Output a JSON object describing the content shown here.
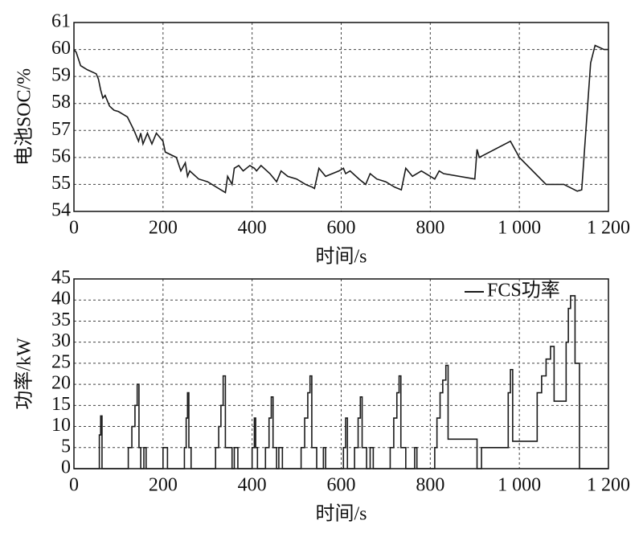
{
  "chart_data": [
    {
      "type": "line",
      "xlabel": "时间/s",
      "ylabel": "电池SOC/%",
      "color": "#1a1a1a",
      "grid": true,
      "x": [
        0,
        5,
        15,
        30,
        50,
        55,
        60,
        65,
        70,
        80,
        90,
        100,
        120,
        135,
        145,
        150,
        155,
        165,
        175,
        185,
        200,
        205,
        230,
        240,
        250,
        255,
        260,
        280,
        300,
        330,
        340,
        345,
        355,
        360,
        370,
        380,
        395,
        405,
        410,
        420,
        440,
        455,
        465,
        480,
        500,
        520,
        535,
        540,
        550,
        565,
        580,
        595,
        605,
        610,
        620,
        640,
        655,
        665,
        680,
        700,
        720,
        735,
        745,
        760,
        780,
        800,
        810,
        820,
        830,
        900,
        905,
        910,
        980,
        1000,
        1060,
        1100,
        1130,
        1140,
        1160,
        1170,
        1190,
        1200
      ],
      "values": [
        60.0,
        59.9,
        59.4,
        59.25,
        59.1,
        58.9,
        58.5,
        58.2,
        58.3,
        57.9,
        57.75,
        57.7,
        57.5,
        57.0,
        56.6,
        56.9,
        56.5,
        56.9,
        56.5,
        56.9,
        56.6,
        56.2,
        56.0,
        55.5,
        55.8,
        55.3,
        55.5,
        55.2,
        55.1,
        54.8,
        54.7,
        55.3,
        55.0,
        55.6,
        55.7,
        55.5,
        55.7,
        55.6,
        55.5,
        55.7,
        55.4,
        55.1,
        55.5,
        55.3,
        55.2,
        55.0,
        54.9,
        54.85,
        55.6,
        55.3,
        55.4,
        55.5,
        55.6,
        55.4,
        55.5,
        55.2,
        55.0,
        55.4,
        55.2,
        55.1,
        54.9,
        54.8,
        55.6,
        55.3,
        55.5,
        55.3,
        55.2,
        55.5,
        55.4,
        55.2,
        56.3,
        56.0,
        56.6,
        56.0,
        55.0,
        55.0,
        54.75,
        54.8,
        59.5,
        60.15,
        60.0,
        60.0
      ],
      "xlim": [
        0,
        1200
      ],
      "xticks": [
        0,
        200,
        400,
        600,
        800,
        {
          "value": 1000,
          "label": "1 000"
        },
        {
          "value": 1200,
          "label": "1 200"
        }
      ],
      "ylim": [
        54,
        61
      ],
      "yticks": [
        54,
        55,
        56,
        57,
        58,
        59,
        60,
        61
      ]
    },
    {
      "type": "line",
      "xlabel": "时间/s",
      "ylabel": "功率/kW",
      "grid": true,
      "legend": "upper right",
      "x": [
        0,
        57,
        57,
        60,
        60,
        63,
        63,
        122,
        122,
        130,
        130,
        137,
        137,
        142,
        142,
        146,
        146,
        150,
        150,
        157,
        157,
        162,
        162,
        200,
        200,
        210,
        210,
        248,
        248,
        252,
        252,
        255,
        255,
        258,
        258,
        263,
        263,
        318,
        318,
        325,
        325,
        330,
        330,
        335,
        335,
        340,
        340,
        355,
        355,
        360,
        360,
        368,
        368,
        400,
        400,
        405,
        405,
        408,
        408,
        412,
        412,
        430,
        430,
        438,
        438,
        443,
        443,
        447,
        447,
        455,
        455,
        460,
        460,
        468,
        468,
        510,
        510,
        518,
        518,
        525,
        525,
        530,
        530,
        534,
        534,
        545,
        545,
        560,
        560,
        565,
        565,
        605,
        605,
        610,
        610,
        614,
        614,
        630,
        630,
        638,
        638,
        643,
        643,
        647,
        647,
        657,
        657,
        665,
        665,
        672,
        672,
        710,
        710,
        718,
        718,
        725,
        725,
        730,
        730,
        734,
        734,
        745,
        745,
        765,
        765,
        770,
        770,
        810,
        810,
        815,
        815,
        822,
        822,
        828,
        828,
        835,
        835,
        840,
        840,
        905,
        905,
        915,
        915,
        975,
        975,
        980,
        980,
        985,
        985,
        1040,
        1040,
        1050,
        1050,
        1060,
        1060,
        1070,
        1070,
        1078,
        1078,
        1105,
        1105,
        1110,
        1110,
        1115,
        1115,
        1125,
        1125,
        1135,
        1135,
        1200
      ],
      "series": [
        {
          "name": "FCS功率",
          "color": "#1a1a1a",
          "values": [
            0,
            0,
            8,
            8,
            12.5,
            12.5,
            0,
            0,
            5,
            5,
            10,
            10,
            15,
            15,
            20,
            20,
            5,
            5,
            0,
            0,
            5,
            5,
            0,
            0,
            5,
            5,
            0,
            0,
            5,
            5,
            12,
            12,
            18,
            18,
            5,
            5,
            0,
            0,
            5,
            5,
            10,
            10,
            15,
            15,
            22,
            22,
            5,
            5,
            0,
            0,
            5,
            5,
            0,
            0,
            5,
            5,
            12,
            12,
            5,
            5,
            0,
            0,
            5,
            5,
            12,
            12,
            17,
            17,
            5,
            5,
            0,
            0,
            5,
            5,
            0,
            0,
            5,
            5,
            12,
            12,
            18,
            18,
            22,
            22,
            5,
            5,
            0,
            0,
            5,
            5,
            0,
            0,
            5,
            5,
            12,
            12,
            0,
            0,
            5,
            5,
            12,
            12,
            17,
            17,
            5,
            5,
            0,
            0,
            5,
            5,
            0,
            0,
            5,
            5,
            12,
            12,
            18,
            18,
            22,
            22,
            5,
            5,
            0,
            0,
            5,
            5,
            0,
            0,
            5,
            5,
            12,
            12,
            18,
            18,
            21,
            21,
            24.5,
            24.5,
            7,
            7,
            0,
            0,
            5,
            5,
            18,
            18,
            23.5,
            23.5,
            6.5,
            6.5,
            18,
            18,
            22,
            22,
            26,
            26,
            29,
            29,
            16,
            16,
            30,
            30,
            38,
            38,
            41,
            41,
            25,
            25,
            0,
            0
          ]
        }
      ],
      "xlim": [
        0,
        1200
      ],
      "xticks": [
        0,
        200,
        400,
        600,
        800,
        {
          "value": 1000,
          "label": "1 000"
        },
        {
          "value": 1200,
          "label": "1 200"
        }
      ],
      "ylim": [
        0,
        45
      ],
      "yticks": [
        0,
        5,
        10,
        15,
        20,
        25,
        30,
        35,
        40,
        45
      ]
    }
  ]
}
